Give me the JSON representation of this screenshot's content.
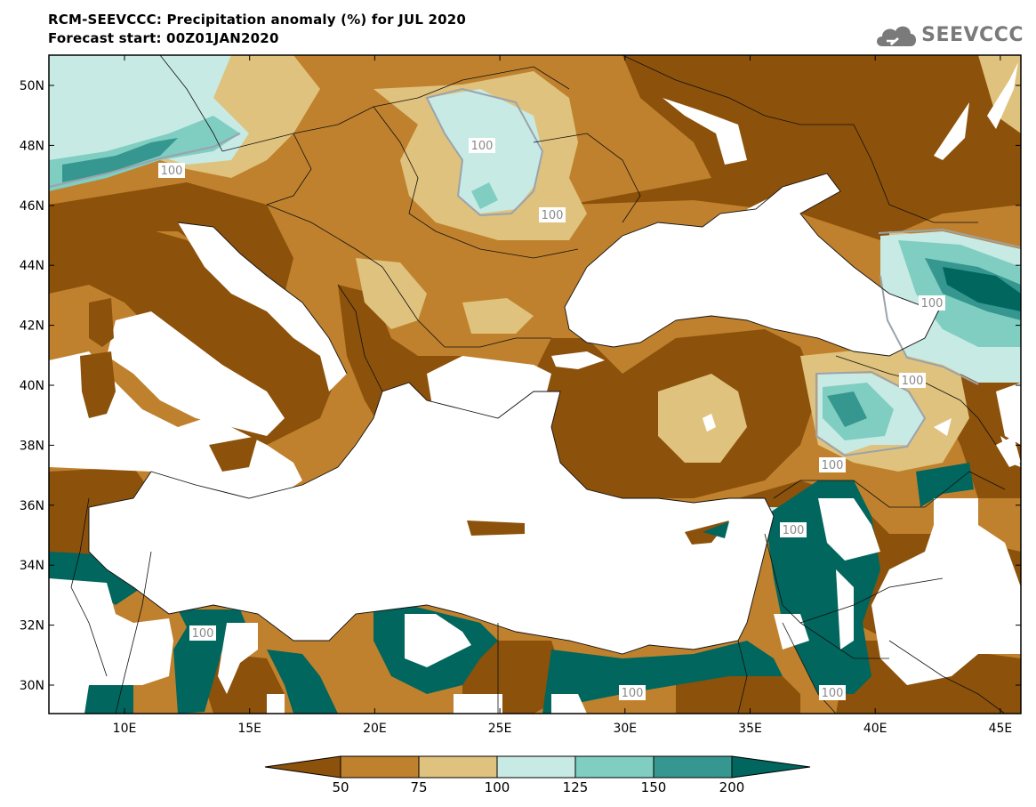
{
  "title_line1": "RCM-SEEVCCC: Precipitation anomaly (%) for JUL 2020",
  "title_line2": "Forecast start: 00Z01JAN2020",
  "logo_text": "SEEVCCC",
  "logo_icon": "cloud-icon",
  "lat_labels": [
    "50N",
    "48N",
    "46N",
    "44N",
    "42N",
    "40N",
    "38N",
    "36N",
    "34N",
    "32N",
    "30N"
  ],
  "lon_labels": [
    "10E",
    "15E",
    "20E",
    "25E",
    "30E",
    "35E",
    "40E",
    "45E"
  ],
  "contour_labels": [
    "100",
    "100",
    "100",
    "100",
    "100",
    "100",
    "100",
    "100",
    "100",
    "100"
  ],
  "colorbar": {
    "levels": [
      "50",
      "75",
      "100",
      "125",
      "150",
      "200"
    ],
    "colors": [
      "#8c510a",
      "#bf812d",
      "#dfc27d",
      "#c7eae5",
      "#80cdc1",
      "#35978f",
      "#01665e"
    ]
  }
}
